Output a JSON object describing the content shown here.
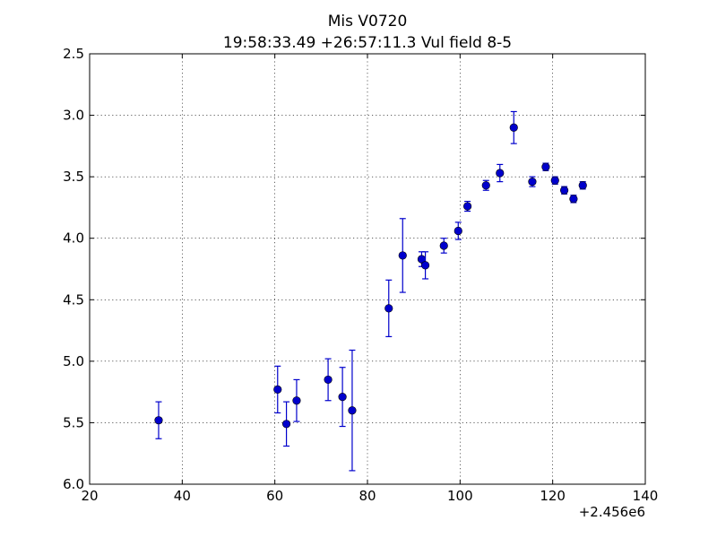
{
  "chart_data": {
    "type": "scatter",
    "title": "Mis V0720",
    "subtitle": "19:58:33.49 +26:57:11.3 Vul field 8-5",
    "xlabel": "",
    "ylabel": "",
    "x_offset_label": "+2.456e6",
    "xlim": [
      20,
      140
    ],
    "ylim": [
      2.5,
      6.0
    ],
    "y_inverted": true,
    "x_ticks": [
      20,
      40,
      60,
      80,
      100,
      120,
      140
    ],
    "x_tick_labels": [
      "20",
      "40",
      "60",
      "80",
      "100",
      "120",
      "140"
    ],
    "y_ticks": [
      2.5,
      3.0,
      3.5,
      4.0,
      4.5,
      5.0,
      5.5,
      6.0
    ],
    "y_tick_labels": [
      "2.5",
      "3.0",
      "3.5",
      "4.0",
      "4.5",
      "5.0",
      "5.5",
      "6.0"
    ],
    "grid": true,
    "marker_color": "#0000cc",
    "series": [
      {
        "points": [
          {
            "x": 34.9,
            "y": 5.48,
            "err": 0.15
          },
          {
            "x": 60.6,
            "y": 5.23,
            "err": 0.19
          },
          {
            "x": 62.5,
            "y": 5.51,
            "err": 0.18
          },
          {
            "x": 64.7,
            "y": 5.32,
            "err": 0.17
          },
          {
            "x": 71.5,
            "y": 5.15,
            "err": 0.17
          },
          {
            "x": 74.6,
            "y": 5.29,
            "err": 0.24
          },
          {
            "x": 76.7,
            "y": 5.4,
            "err": 0.49
          },
          {
            "x": 84.6,
            "y": 4.57,
            "err": 0.23
          },
          {
            "x": 87.6,
            "y": 4.14,
            "err": 0.3
          },
          {
            "x": 91.7,
            "y": 4.17,
            "err": 0.06
          },
          {
            "x": 92.5,
            "y": 4.22,
            "err": 0.11
          },
          {
            "x": 96.5,
            "y": 4.06,
            "err": 0.06
          },
          {
            "x": 99.6,
            "y": 3.94,
            "err": 0.07
          },
          {
            "x": 101.6,
            "y": 3.74,
            "err": 0.04
          },
          {
            "x": 105.6,
            "y": 3.57,
            "err": 0.04
          },
          {
            "x": 108.6,
            "y": 3.47,
            "err": 0.07
          },
          {
            "x": 111.6,
            "y": 3.1,
            "err": 0.13
          },
          {
            "x": 115.6,
            "y": 3.54,
            "err": 0.04
          },
          {
            "x": 118.5,
            "y": 3.42,
            "err": 0.03
          },
          {
            "x": 120.5,
            "y": 3.53,
            "err": 0.03
          },
          {
            "x": 122.5,
            "y": 3.61,
            "err": 0.03
          },
          {
            "x": 124.5,
            "y": 3.68,
            "err": 0.03
          },
          {
            "x": 126.5,
            "y": 3.57,
            "err": 0.03
          }
        ]
      }
    ]
  }
}
